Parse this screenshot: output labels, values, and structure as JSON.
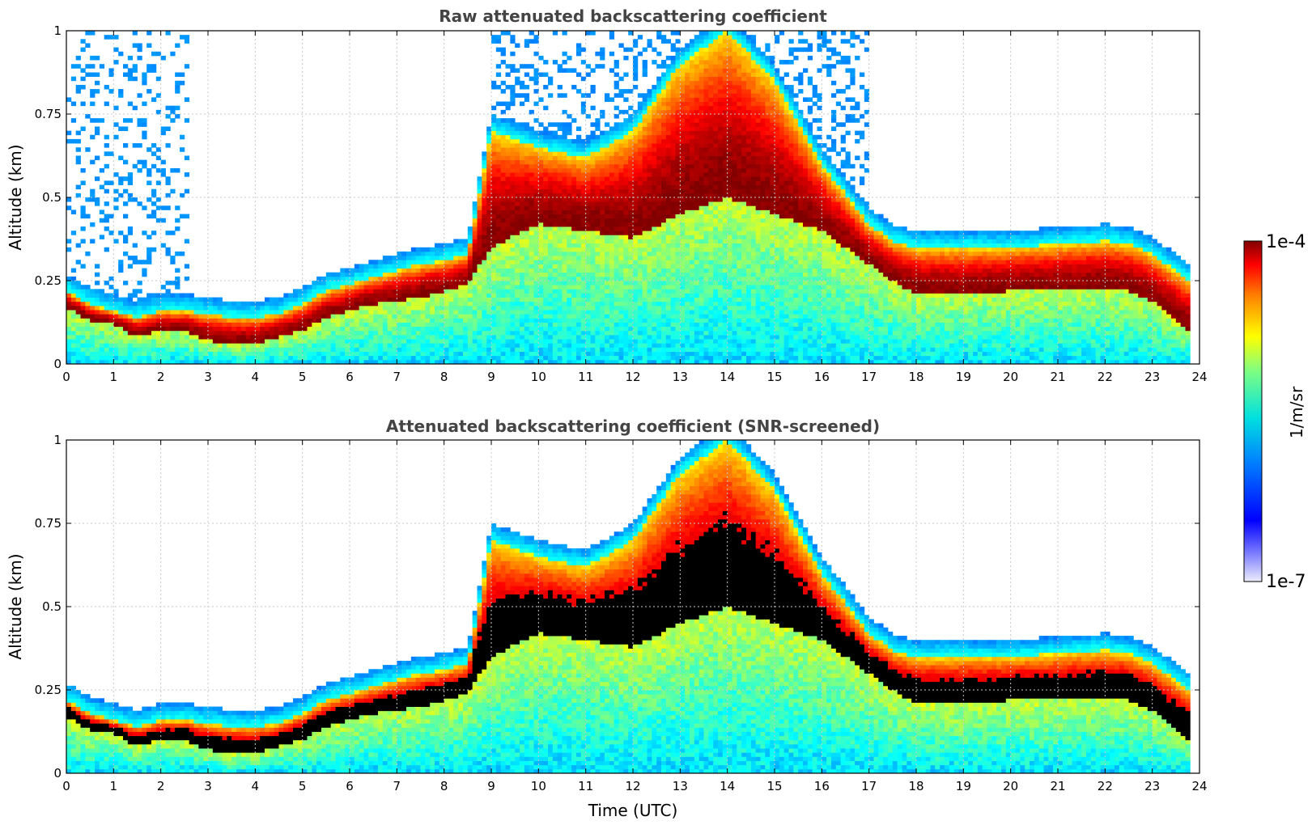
{
  "chart_data": [
    {
      "type": "heatmap",
      "title": "Raw attenuated backscattering coefficient",
      "xlabel": "",
      "ylabel": "Altitude (km)",
      "xlim": [
        0,
        24
      ],
      "ylim": [
        0,
        1
      ],
      "xticks": [
        "0",
        "1",
        "2",
        "3",
        "4",
        "5",
        "6",
        "7",
        "8",
        "9",
        "10",
        "11",
        "12",
        "13",
        "14",
        "15",
        "16",
        "17",
        "18",
        "19",
        "20",
        "21",
        "22",
        "23",
        "24"
      ],
      "yticks": [
        "0",
        "0.25",
        "0.5",
        "0.75",
        "1"
      ],
      "grid": true,
      "colormap": "jet",
      "clim": [
        "1e-7",
        "1e-4"
      ],
      "cloud_base_km": [
        [
          0,
          0.17
        ],
        [
          0.5,
          0.13
        ],
        [
          1,
          0.12
        ],
        [
          1.5,
          0.08
        ],
        [
          2,
          0.1
        ],
        [
          2.5,
          0.1
        ],
        [
          3,
          0.07
        ],
        [
          3.5,
          0.06
        ],
        [
          4,
          0.06
        ],
        [
          4.5,
          0.08
        ],
        [
          5,
          0.1
        ],
        [
          5.5,
          0.14
        ],
        [
          6,
          0.16
        ],
        [
          6.5,
          0.18
        ],
        [
          7,
          0.19
        ],
        [
          7.5,
          0.2
        ],
        [
          8,
          0.22
        ],
        [
          8.5,
          0.24
        ],
        [
          9,
          0.35
        ],
        [
          10,
          0.42
        ],
        [
          11,
          0.4
        ],
        [
          12,
          0.38
        ],
        [
          13,
          0.45
        ],
        [
          14,
          0.5
        ],
        [
          15,
          0.45
        ],
        [
          16,
          0.4
        ],
        [
          17,
          0.3
        ],
        [
          17.5,
          0.25
        ],
        [
          18,
          0.21
        ],
        [
          19,
          0.21
        ],
        [
          20,
          0.22
        ],
        [
          21,
          0.22
        ],
        [
          22,
          0.23
        ],
        [
          22.5,
          0.22
        ],
        [
          23,
          0.19
        ],
        [
          23.5,
          0.13
        ],
        [
          23.8,
          0.1
        ]
      ],
      "cloud_top_km": [
        [
          0,
          0.22
        ],
        [
          0.5,
          0.18
        ],
        [
          1,
          0.16
        ],
        [
          1.5,
          0.14
        ],
        [
          2,
          0.16
        ],
        [
          2.5,
          0.16
        ],
        [
          3,
          0.15
        ],
        [
          3.5,
          0.14
        ],
        [
          4,
          0.14
        ],
        [
          4.5,
          0.15
        ],
        [
          5,
          0.18
        ],
        [
          5.5,
          0.22
        ],
        [
          6,
          0.24
        ],
        [
          6.5,
          0.26
        ],
        [
          7,
          0.28
        ],
        [
          7.5,
          0.3
        ],
        [
          8,
          0.31
        ],
        [
          8.5,
          0.33
        ],
        [
          9,
          0.7
        ],
        [
          10,
          0.65
        ],
        [
          11,
          0.62
        ],
        [
          12,
          0.7
        ],
        [
          13,
          0.9
        ],
        [
          14,
          1.0
        ],
        [
          15,
          0.85
        ],
        [
          16,
          0.6
        ],
        [
          17,
          0.42
        ],
        [
          17.5,
          0.37
        ],
        [
          18,
          0.35
        ],
        [
          19,
          0.35
        ],
        [
          20,
          0.35
        ],
        [
          21,
          0.36
        ],
        [
          22,
          0.37
        ],
        [
          22.5,
          0.36
        ],
        [
          23,
          0.33
        ],
        [
          23.5,
          0.28
        ],
        [
          23.8,
          0.25
        ]
      ]
    },
    {
      "type": "heatmap",
      "title": "Attenuated backscattering coefficient (SNR-screened)",
      "xlabel": "Time (UTC)",
      "ylabel": "Altitude (km)",
      "xlim": [
        0,
        24
      ],
      "ylim": [
        0,
        1
      ],
      "xticks": [
        "0",
        "1",
        "2",
        "3",
        "4",
        "5",
        "6",
        "7",
        "8",
        "9",
        "10",
        "11",
        "12",
        "13",
        "14",
        "15",
        "16",
        "17",
        "18",
        "19",
        "20",
        "21",
        "22",
        "23",
        "24"
      ],
      "yticks": [
        "0",
        "0.25",
        "0.5",
        "0.75",
        "1"
      ],
      "grid": true,
      "colormap": "jet",
      "clim": [
        "1e-7",
        "1e-4"
      ],
      "saturated_color": "#000000"
    }
  ],
  "colorbar": {
    "max_label": "1e-4",
    "min_label": "1e-7",
    "unit_label": "1/m/sr"
  }
}
